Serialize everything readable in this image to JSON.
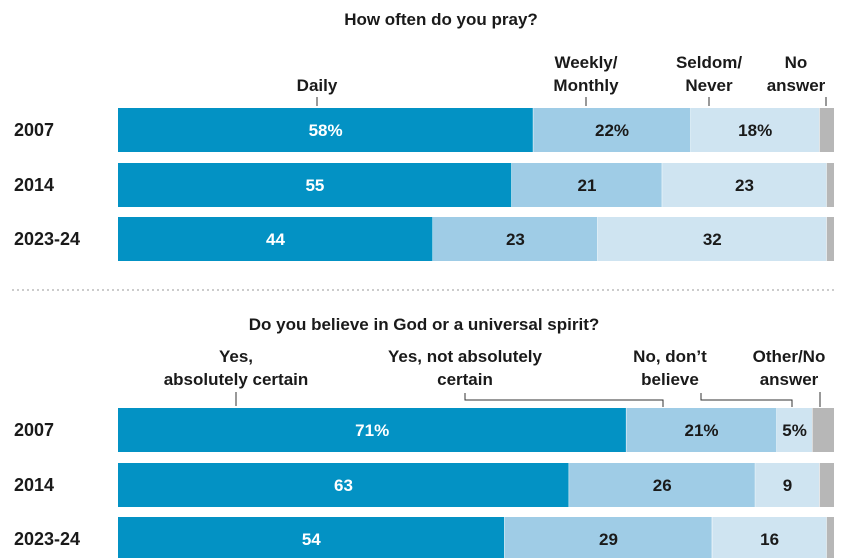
{
  "colors": {
    "dark": "#0392c4",
    "mid": "#9fcce6",
    "light": "#cfe4f1",
    "na": "#b7b7b7",
    "text_light": "#ffffff",
    "text_dark": "#1a1a1a"
  },
  "chart_data": [
    {
      "type": "bar",
      "stacked": true,
      "orientation": "horizontal",
      "title": "How often do you pray?",
      "categories": [
        "2007",
        "2014",
        "2023-24"
      ],
      "series": [
        {
          "name": "Daily",
          "values": [
            58,
            55,
            44
          ],
          "labels": [
            "58%",
            "55",
            "44"
          ]
        },
        {
          "name": "Weekly/ Monthly",
          "values": [
            22,
            21,
            23
          ],
          "labels": [
            "22%",
            "21",
            "23"
          ]
        },
        {
          "name": "Seldom/ Never",
          "values": [
            18,
            23,
            32
          ],
          "labels": [
            "18%",
            "23",
            "32"
          ]
        },
        {
          "name": "No answer",
          "values": [
            2,
            1,
            1
          ],
          "labels": [
            "",
            "",
            ""
          ]
        }
      ]
    },
    {
      "type": "bar",
      "stacked": true,
      "orientation": "horizontal",
      "title": "Do you believe in God or a universal spirit?",
      "categories": [
        "2007",
        "2014",
        "2023-24"
      ],
      "series": [
        {
          "name": "Yes, absolutely certain",
          "values": [
            71,
            63,
            54
          ],
          "labels": [
            "71%",
            "63",
            "54"
          ]
        },
        {
          "name": "Yes, not absolutely certain",
          "values": [
            21,
            26,
            29
          ],
          "labels": [
            "21%",
            "26",
            "29"
          ]
        },
        {
          "name": "No, don’t believe",
          "values": [
            5,
            9,
            16
          ],
          "labels": [
            "5%",
            "9",
            "16"
          ]
        },
        {
          "name": "Other/No answer",
          "values": [
            3,
            2,
            1
          ],
          "labels": [
            "",
            "",
            ""
          ]
        }
      ]
    }
  ]
}
